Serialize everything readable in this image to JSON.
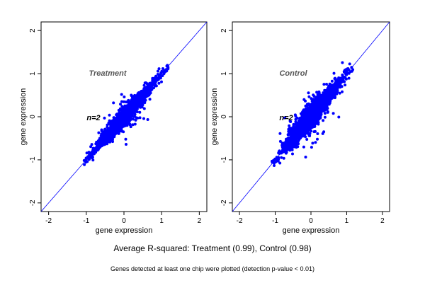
{
  "caption": "Average R-squared: Treatment (0.99), Control (0.98)",
  "note": "Genes detected at least one chip were plotted (detection p-value < 0.01)",
  "colors": {
    "points": "#0000ff",
    "diagonal": "#0000ff",
    "label": "#555555",
    "axis": "#000000"
  },
  "chart_data": [
    {
      "type": "scatter",
      "title": "Treatment",
      "annotation": "n=2",
      "xlabel": "gene expression",
      "ylabel": "gene expression",
      "xlim": [
        -2.2,
        2.2
      ],
      "ylim": [
        -2.2,
        2.2
      ],
      "xticks": [
        -2,
        -1,
        0,
        1,
        2
      ],
      "yticks": [
        -2,
        -1,
        0,
        1,
        2
      ],
      "grid": false,
      "reference_line": "y = x",
      "point_cloud": {
        "x_range": [
          -1.1,
          1.15
        ],
        "y_range": [
          -1.15,
          1.15
        ],
        "spread": 0.09,
        "n_points": 2200,
        "outlier_spread": 0.25,
        "outlier_fraction": 0.05,
        "seed": 11
      }
    },
    {
      "type": "scatter",
      "title": "Control",
      "annotation": "n=2",
      "xlabel": "gene expression",
      "ylabel": "gene expression",
      "xlim": [
        -2.2,
        2.2
      ],
      "ylim": [
        -2.2,
        2.2
      ],
      "xticks": [
        -2,
        -1,
        0,
        1,
        2
      ],
      "yticks": [
        -2,
        -1,
        0,
        1,
        2
      ],
      "grid": false,
      "reference_line": "y = x",
      "point_cloud": {
        "x_range": [
          -1.1,
          1.15
        ],
        "y_range": [
          -1.1,
          1.15
        ],
        "spread": 0.12,
        "n_points": 2600,
        "outlier_spread": 0.28,
        "outlier_fraction": 0.05,
        "seed": 23
      }
    }
  ]
}
